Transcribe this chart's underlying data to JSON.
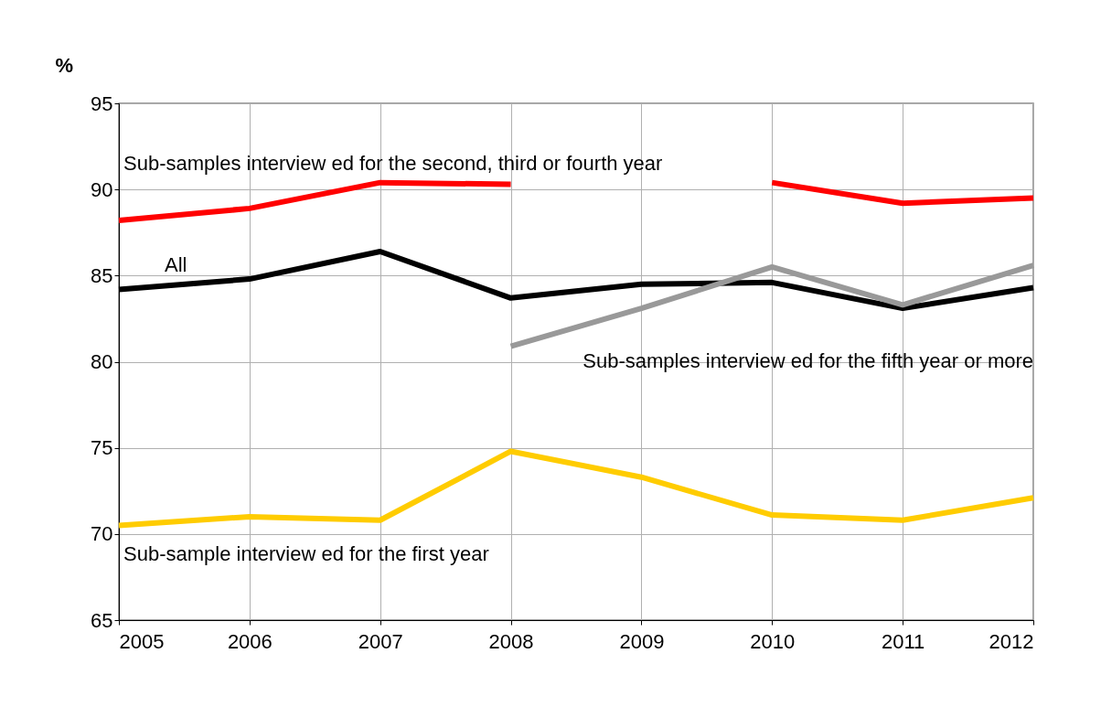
{
  "chart_data": {
    "type": "line",
    "ylabel": "%",
    "x": [
      2005,
      2006,
      2007,
      2008,
      2009,
      2010,
      2011,
      2012
    ],
    "xlim": [
      2005,
      2012
    ],
    "xticks": [
      2005,
      2006,
      2007,
      2008,
      2009,
      2010,
      2011,
      2012
    ],
    "ylim": [
      65,
      95
    ],
    "yticks": [
      65,
      70,
      75,
      80,
      85,
      90,
      95
    ],
    "grid": true,
    "legend": false,
    "series": [
      {
        "name": "Sub-samples interview ed for the second, third or fourth year",
        "color": "#ff0000",
        "values": [
          88.2,
          88.9,
          90.4,
          90.3,
          null,
          90.4,
          89.2,
          89.5
        ]
      },
      {
        "name": "All",
        "color": "#000000",
        "values": [
          84.2,
          84.8,
          86.4,
          83.7,
          84.5,
          84.6,
          83.1,
          84.3
        ]
      },
      {
        "name": "Sub-samples interview ed for the fifth year or more",
        "color": "#999999",
        "values": [
          null,
          null,
          null,
          80.9,
          83.1,
          85.5,
          83.3,
          85.6
        ]
      },
      {
        "name": "Sub-sample interview ed for the first year",
        "color": "#ffcc00",
        "values": [
          70.5,
          71.0,
          70.8,
          74.8,
          73.3,
          71.1,
          70.8,
          72.1
        ]
      }
    ]
  }
}
